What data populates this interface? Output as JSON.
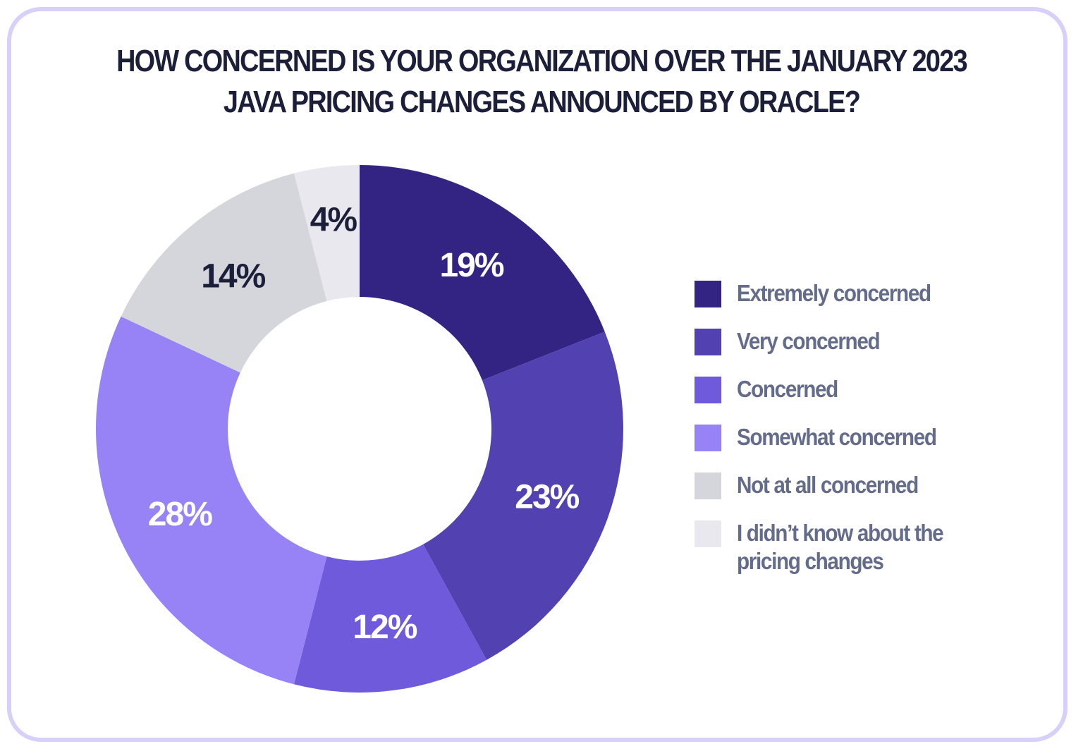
{
  "chart_data": {
    "type": "pie",
    "variant": "donut",
    "title_lines": [
      "HOW CONCERNED IS YOUR ORGANIZATION OVER THE JANUARY 2023",
      "JAVA PRICING CHANGES ANNOUNCED BY ORACLE?"
    ],
    "categories": [
      "Extremely concerned",
      "Very concerned",
      "Concerned",
      "Somewhat concerned",
      "Not at all concerned",
      "I didn’t know about the pricing changes"
    ],
    "values": [
      19,
      23,
      12,
      28,
      14,
      4
    ],
    "data_labels": [
      "19%",
      "23%",
      "12%",
      "28%",
      "14%",
      "4%"
    ],
    "colors": [
      "#332383",
      "#5241b0",
      "#6f5adb",
      "#9883f6",
      "#d4d6dc",
      "#e8e8ee"
    ],
    "label_colors": [
      "#ffffff",
      "#ffffff",
      "#ffffff",
      "#ffffff",
      "#1c1f3a",
      "#1c1f3a"
    ],
    "legend_position": "right",
    "start": "top",
    "direction": "clockwise"
  }
}
